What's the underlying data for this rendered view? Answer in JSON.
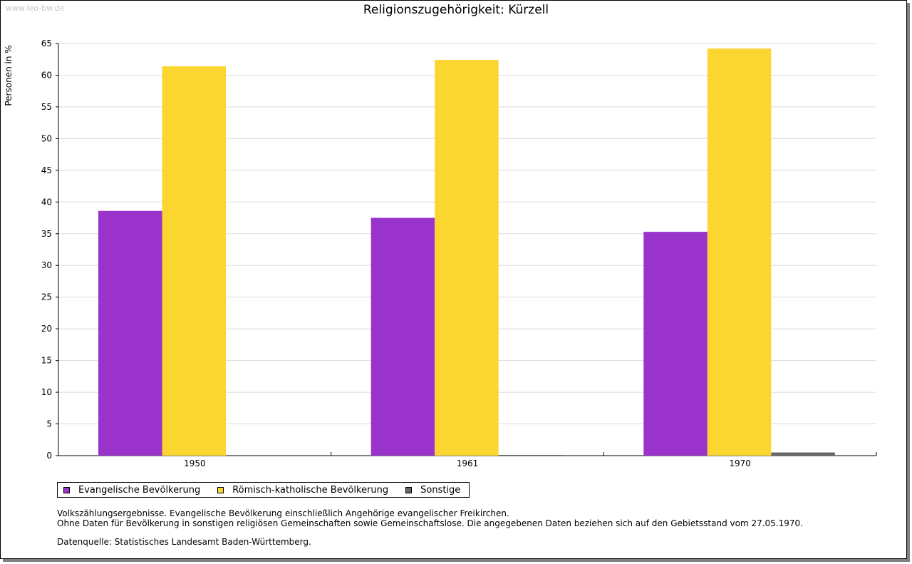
{
  "watermark": "www.leo-bw.de",
  "chart_data": {
    "type": "bar",
    "title": "Religionszugehörigkeit: Kürzell",
    "ylabel": "Personen in %",
    "xlabel": "",
    "ylim": [
      0,
      65
    ],
    "yticks": [
      0,
      5,
      10,
      15,
      20,
      25,
      30,
      35,
      40,
      45,
      50,
      55,
      60,
      65
    ],
    "grid": true,
    "legend_position": "bottom-left",
    "categories": [
      "1950",
      "1961",
      "1970"
    ],
    "series": [
      {
        "name": "Evangelische Bevölkerung",
        "color": "#9933cc",
        "values": [
          38.6,
          37.5,
          35.3
        ]
      },
      {
        "name": "Römisch-katholische Bevölkerung",
        "color": "#fcd630",
        "values": [
          61.4,
          62.4,
          64.2
        ]
      },
      {
        "name": "Sonstige",
        "color": "#666666",
        "values": [
          0.0,
          0.1,
          0.5
        ]
      }
    ]
  },
  "notes": {
    "line1": "Volkszählungsergebnisse. Evangelische Bevölkerung einschließlich Angehörige evangelischer Freikirchen.",
    "line2": "Ohne Daten für Bevölkerung in sonstigen religiösen Gemeinschaften sowie Gemeinschaftslose. Die angegebenen Daten beziehen sich auf den Gebietsstand vom 27.05.1970.",
    "source": "Datenquelle: Statistisches Landesamt Baden-Württemberg."
  }
}
